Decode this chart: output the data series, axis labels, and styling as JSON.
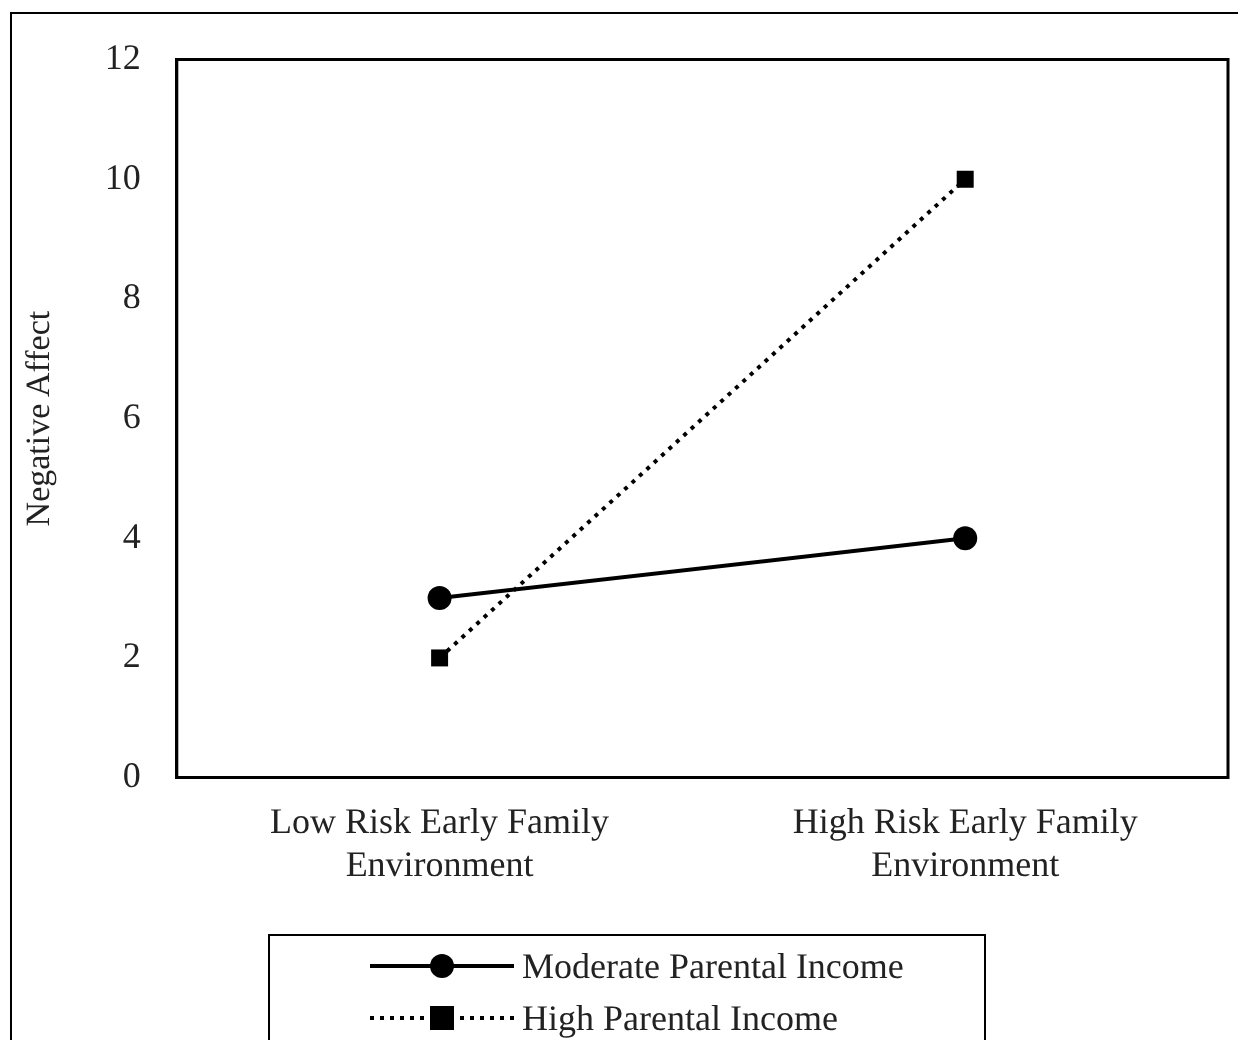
{
  "chart_data": {
    "type": "line",
    "ylabel": "Negative Affect",
    "categories": [
      "Low Risk Early Family Environment",
      "High Risk Early Family Environment"
    ],
    "series": [
      {
        "name": "Moderate Parental Income",
        "color": "#000000",
        "values": [
          3,
          4
        ],
        "marker": "circle",
        "line_style": "solid"
      },
      {
        "name": "High Parental Income",
        "color": "#000000",
        "values": [
          2,
          10
        ],
        "marker": "square",
        "line_style": "dotted"
      }
    ],
    "ylim": [
      0,
      12
    ],
    "yticks": [
      0,
      2,
      4,
      6,
      8,
      10,
      12
    ],
    "grid": false,
    "legend": "bottom"
  }
}
